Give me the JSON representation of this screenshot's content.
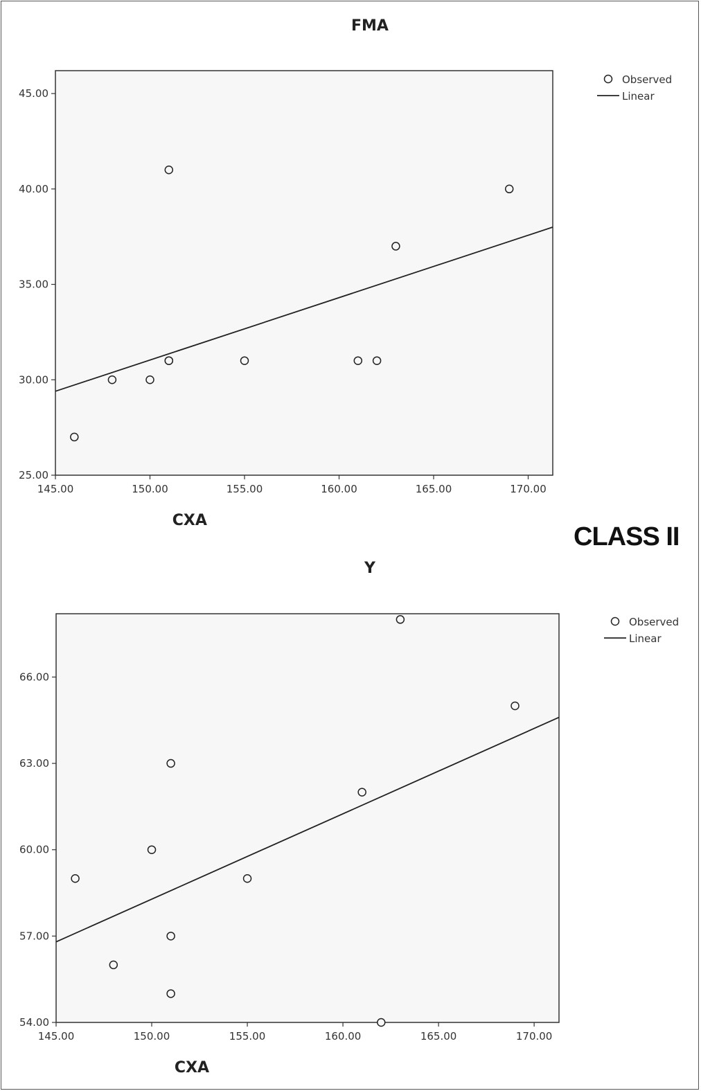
{
  "figure": {
    "label": "CLASS II"
  },
  "legend": {
    "observed": "Observed",
    "linear": "Linear"
  },
  "chart_data": [
    {
      "type": "scatter",
      "title": "FMA",
      "xlabel": "CXA",
      "ylabel": "",
      "xlim": [
        145.0,
        171.3
      ],
      "ylim": [
        25.0,
        46.2
      ],
      "xticks": [
        "145.00",
        "150.00",
        "155.00",
        "160.00",
        "165.00",
        "170.00"
      ],
      "xtick_values": [
        145,
        150,
        155,
        160,
        165,
        170
      ],
      "yticks": [
        "25.00",
        "30.00",
        "35.00",
        "40.00",
        "45.00"
      ],
      "ytick_values": [
        25,
        30,
        35,
        40,
        45
      ],
      "series": [
        {
          "name": "Observed",
          "x": [
            146,
            148,
            150,
            151,
            151,
            151,
            155,
            161,
            162,
            163,
            169
          ],
          "y": [
            27,
            30,
            30,
            31,
            31,
            41,
            31,
            31,
            31,
            37,
            40
          ]
        }
      ],
      "fit_line": {
        "name": "Linear",
        "x": [
          145.0,
          171.3
        ],
        "y": [
          29.4,
          38.0
        ]
      },
      "legend_position": "top-right"
    },
    {
      "type": "scatter",
      "title": "Y",
      "xlabel": "CXA",
      "ylabel": "",
      "xlim": [
        145.0,
        171.3
      ],
      "ylim": [
        54.0,
        68.2
      ],
      "xticks": [
        "145.00",
        "150.00",
        "155.00",
        "160.00",
        "165.00",
        "170.00"
      ],
      "xtick_values": [
        145,
        150,
        155,
        160,
        165,
        170
      ],
      "yticks": [
        "54.00",
        "57.00",
        "60.00",
        "63.00",
        "66.00"
      ],
      "ytick_values": [
        54,
        57,
        60,
        63,
        66
      ],
      "series": [
        {
          "name": "Observed",
          "x": [
            146,
            148,
            150,
            151,
            151,
            151,
            155,
            161,
            162,
            163,
            169
          ],
          "y": [
            59,
            56,
            60,
            63,
            57,
            55,
            59,
            62,
            54,
            68,
            65
          ]
        }
      ],
      "fit_line": {
        "name": "Linear",
        "x": [
          145.0,
          171.3
        ],
        "y": [
          56.8,
          64.6
        ]
      },
      "legend_position": "top-right"
    }
  ]
}
